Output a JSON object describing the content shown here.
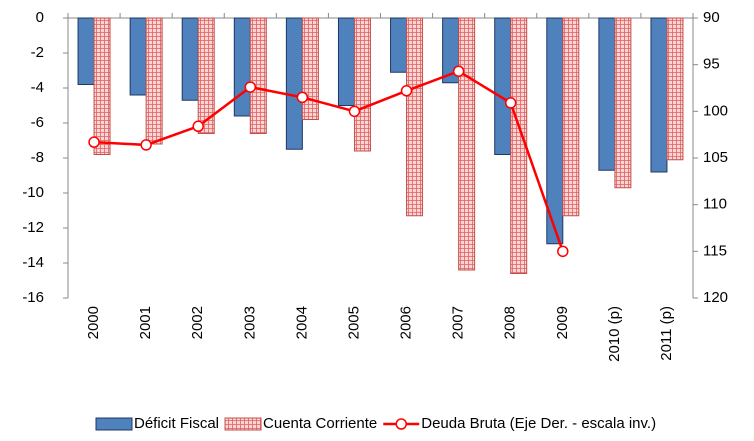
{
  "chart_data": {
    "type": "bar",
    "categories": [
      "2000",
      "2001",
      "2002",
      "2003",
      "2004",
      "2005",
      "2006",
      "2007",
      "2008",
      "2009",
      "2010 (p)",
      "2011 (p)"
    ],
    "series": [
      {
        "name": "Déficit Fiscal",
        "type": "bar",
        "color": "#4f81bd",
        "values": [
          -3.8,
          -4.4,
          -4.7,
          -5.6,
          -7.5,
          -5.0,
          -3.1,
          -3.7,
          -7.8,
          -12.9,
          -8.7,
          -8.8
        ]
      },
      {
        "name": "Cuenta Corriente",
        "type": "bar",
        "color": "#f7a8a8",
        "values": [
          -7.8,
          -7.2,
          -6.6,
          -6.6,
          -5.8,
          -7.6,
          -11.3,
          -14.4,
          -14.6,
          -11.3,
          -9.7,
          -8.1
        ]
      },
      {
        "name": "Deuda Bruta (Eje Der. - escala inv.)",
        "type": "line",
        "axis": "y2",
        "color": "#ff0000",
        "values": [
          103.3,
          103.6,
          101.6,
          97.4,
          98.5,
          100.0,
          97.8,
          95.7,
          99.1,
          115.0,
          null,
          null
        ]
      }
    ],
    "ylim": [
      -16,
      0
    ],
    "yticks": [
      0,
      -2,
      -4,
      -6,
      -8,
      -10,
      -12,
      -14,
      -16
    ],
    "y2lim": [
      90,
      120
    ],
    "y2ticks": [
      90,
      95,
      100,
      105,
      110,
      115,
      120
    ],
    "y2_inverted": true,
    "grid": false,
    "legend": "bottom"
  }
}
